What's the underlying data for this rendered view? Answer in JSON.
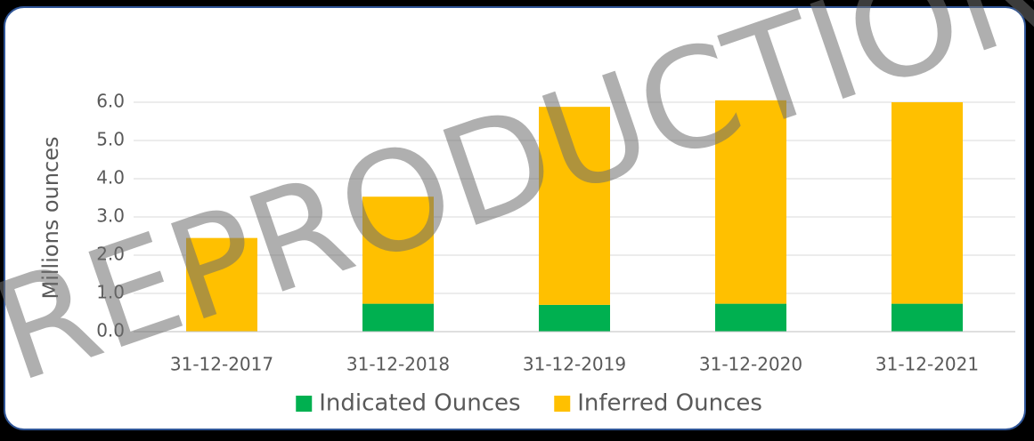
{
  "chart_data": {
    "type": "stacked_bar",
    "categories": [
      "31-12-2017",
      "31-12-2018",
      "31-12-2019",
      "31-12-2020",
      "31-12-2021"
    ],
    "series": [
      {
        "name": "Indicated Ounces",
        "color": "#00b050",
        "values": [
          0,
          0.73,
          0.7,
          0.73,
          0.73
        ]
      },
      {
        "name": "Inferred Ounces",
        "color": "#ffc000",
        "values": [
          2.45,
          2.8,
          5.18,
          5.32,
          5.27
        ]
      }
    ],
    "y_label": "Millions ounces",
    "ylim": [
      0,
      6.3
    ],
    "yticks": [
      {
        "value": 0,
        "label": "0.0"
      },
      {
        "value": 1,
        "label": "1.0"
      },
      {
        "value": 2,
        "label": "2.0"
      },
      {
        "value": 3,
        "label": "3.0"
      },
      {
        "value": 4,
        "label": "4.0"
      },
      {
        "value": 5,
        "label": "5.0"
      },
      {
        "value": 6,
        "label": "6.0"
      }
    ],
    "grid": true,
    "legend": "bottom",
    "watermark": "REPRODUCTION"
  }
}
